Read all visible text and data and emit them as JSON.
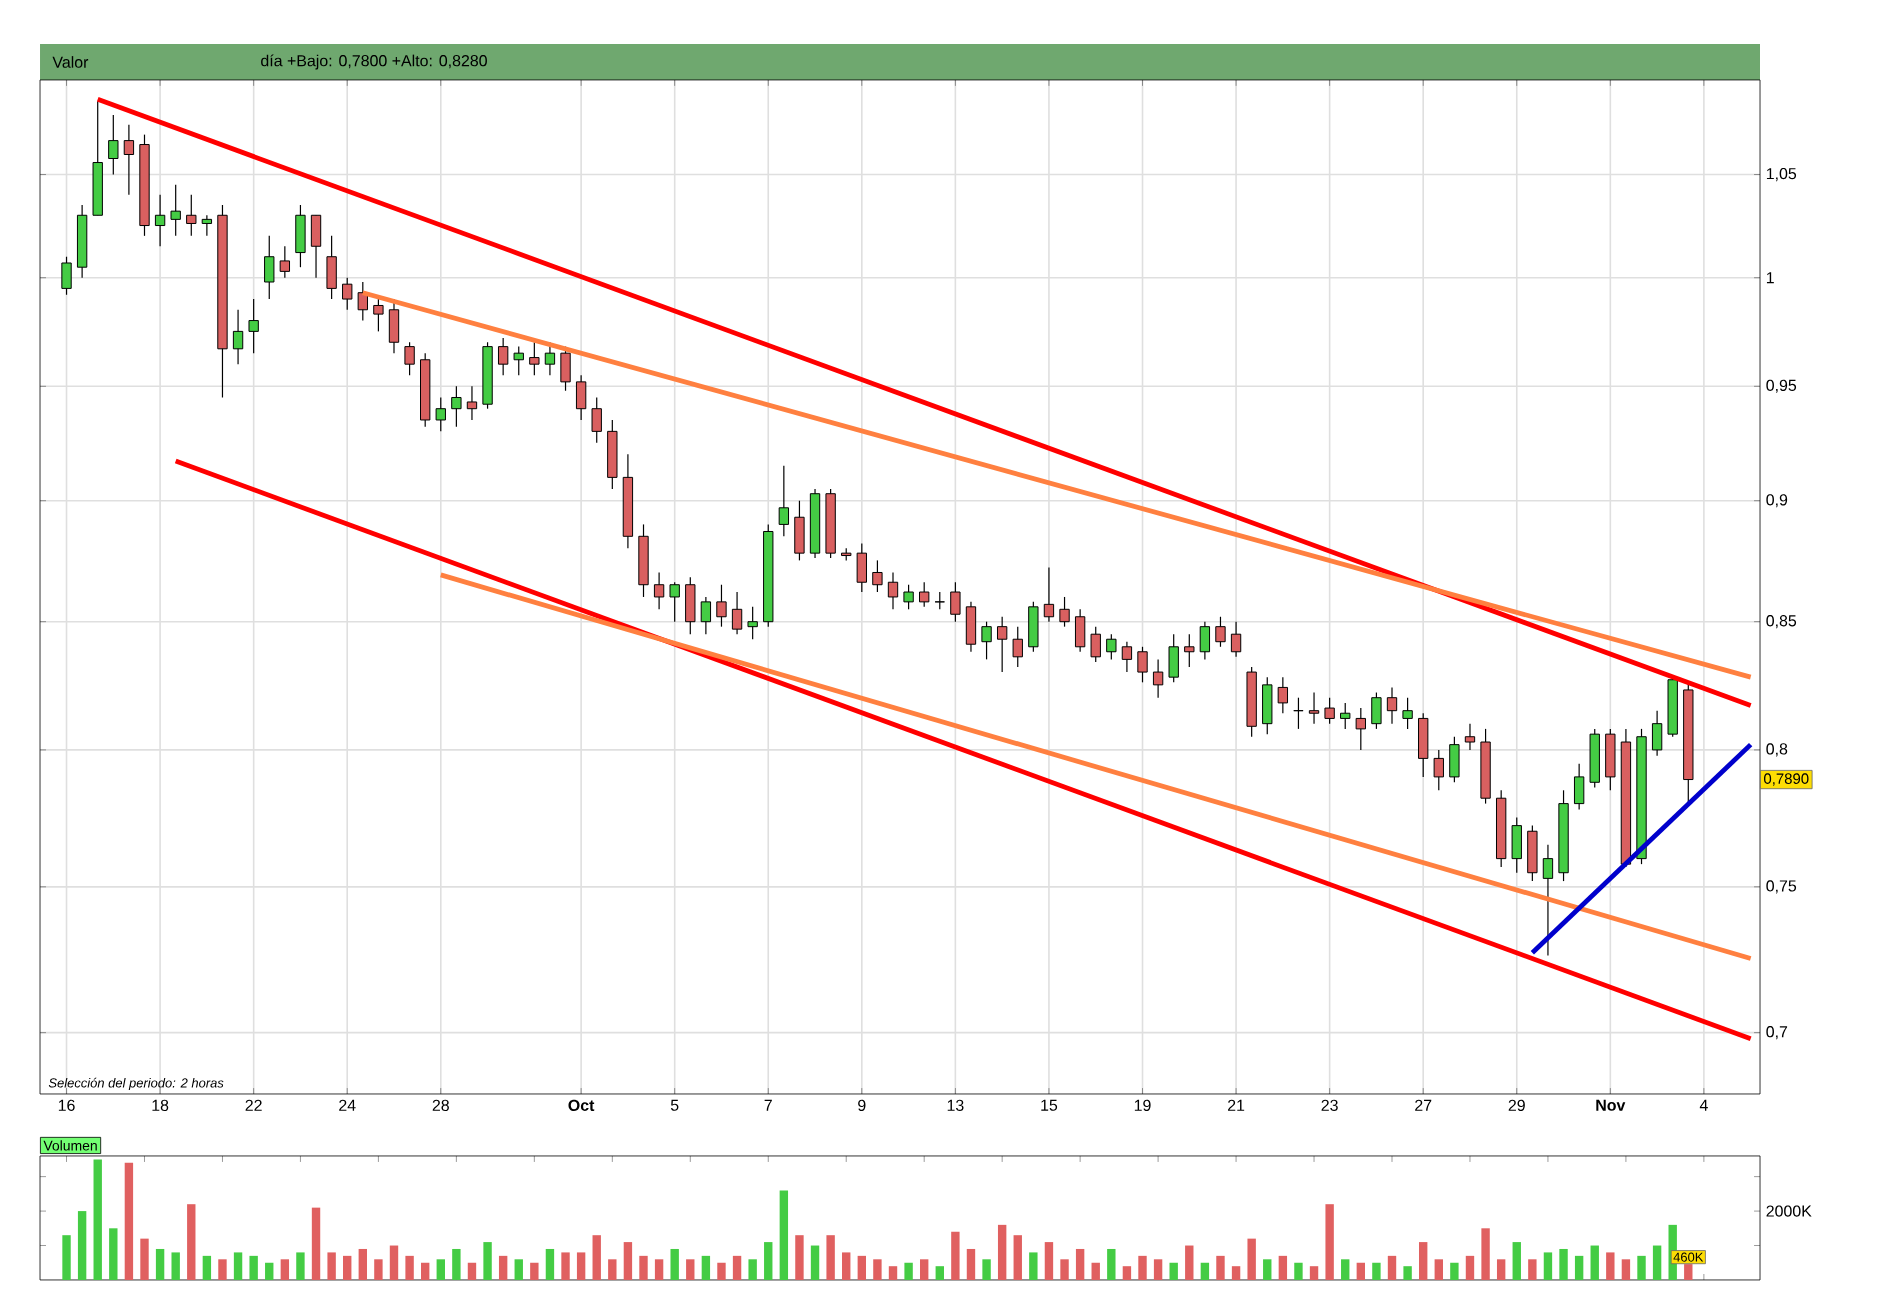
{
  "chart_data": [
    {
      "type": "candlestick",
      "log": true,
      "grid": true,
      "ylim": [
        0.68,
        1.098
      ],
      "yticks": [
        {
          "value": 0.7,
          "label": "0,7"
        },
        {
          "value": 0.75,
          "label": "0,75"
        },
        {
          "value": 0.8,
          "label": "0,8"
        },
        {
          "value": 0.85,
          "label": "0,85"
        },
        {
          "value": 0.9,
          "label": "0,9"
        },
        {
          "value": 0.95,
          "label": "0,95"
        },
        {
          "value": 1,
          "label": "1"
        },
        {
          "value": 1.05,
          "label": "1,05"
        }
      ],
      "categories": [
        "16",
        null,
        null,
        null,
        null,
        null,
        "18",
        null,
        null,
        null,
        null,
        null,
        "22",
        null,
        null,
        null,
        null,
        null,
        "24",
        null,
        null,
        null,
        null,
        null,
        "28",
        null,
        null,
        null,
        null,
        null,
        null,
        null,
        null,
        "**Oct**",
        null,
        null,
        null,
        null,
        null,
        "5",
        null,
        null,
        null,
        null,
        null,
        "7",
        null,
        null,
        null,
        null,
        null,
        "9",
        null,
        null,
        null,
        null,
        null,
        "13",
        null,
        null,
        null,
        null,
        null,
        "15",
        null,
        null,
        null,
        null,
        null,
        "19",
        null,
        null,
        null,
        null,
        null,
        "21",
        null,
        null,
        null,
        null,
        null,
        "23",
        null,
        null,
        null,
        null,
        null,
        "27",
        null,
        null,
        null,
        null,
        null,
        "29",
        null,
        null,
        null,
        null,
        null,
        "**Nov**",
        null,
        null,
        null,
        null,
        null,
        "4",
        null,
        null,
        null
      ],
      "ohlc": [
        [
          0.995,
          1.01,
          0.992,
          1.007
        ],
        [
          1.005,
          1.035,
          1.0,
          1.03
        ],
        [
          1.03,
          1.087,
          1.03,
          1.056
        ],
        [
          1.058,
          1.08,
          1.05,
          1.067
        ],
        [
          1.067,
          1.075,
          1.04,
          1.06
        ],
        [
          1.065,
          1.07,
          1.02,
          1.025
        ],
        [
          1.025,
          1.04,
          1.015,
          1.03
        ],
        [
          1.028,
          1.045,
          1.02,
          1.032
        ],
        [
          1.03,
          1.04,
          1.02,
          1.026
        ],
        [
          1.026,
          1.03,
          1.02,
          1.028
        ],
        [
          1.03,
          1.035,
          0.945,
          0.967
        ],
        [
          0.967,
          0.985,
          0.96,
          0.975
        ],
        [
          0.975,
          0.99,
          0.965,
          0.98
        ],
        [
          0.998,
          1.02,
          0.99,
          1.01
        ],
        [
          1.008,
          1.015,
          1.0,
          1.003
        ],
        [
          1.012,
          1.035,
          1.005,
          1.03
        ],
        [
          1.03,
          1.03,
          1.0,
          1.015
        ],
        [
          1.01,
          1.02,
          0.99,
          0.995
        ],
        [
          0.997,
          1.0,
          0.985,
          0.99
        ],
        [
          0.993,
          0.998,
          0.98,
          0.985
        ],
        [
          0.987,
          0.99,
          0.975,
          0.983
        ],
        [
          0.985,
          0.99,
          0.965,
          0.97
        ],
        [
          0.968,
          0.97,
          0.955,
          0.96
        ],
        [
          0.962,
          0.965,
          0.932,
          0.935
        ],
        [
          0.935,
          0.945,
          0.93,
          0.94
        ],
        [
          0.94,
          0.95,
          0.932,
          0.945
        ],
        [
          0.943,
          0.95,
          0.935,
          0.94
        ],
        [
          0.942,
          0.97,
          0.94,
          0.968
        ],
        [
          0.968,
          0.972,
          0.955,
          0.96
        ],
        [
          0.962,
          0.968,
          0.955,
          0.965
        ],
        [
          0.963,
          0.97,
          0.955,
          0.96
        ],
        [
          0.96,
          0.97,
          0.955,
          0.965
        ],
        [
          0.965,
          0.968,
          0.948,
          0.952
        ],
        [
          0.952,
          0.955,
          0.935,
          0.94
        ],
        [
          0.94,
          0.945,
          0.925,
          0.93
        ],
        [
          0.93,
          0.935,
          0.905,
          0.91
        ],
        [
          0.91,
          0.92,
          0.88,
          0.885
        ],
        [
          0.885,
          0.89,
          0.86,
          0.865
        ],
        [
          0.865,
          0.87,
          0.855,
          0.86
        ],
        [
          0.86,
          0.866,
          0.85,
          0.865
        ],
        [
          0.865,
          0.868,
          0.845,
          0.85
        ],
        [
          0.85,
          0.86,
          0.845,
          0.858
        ],
        [
          0.858,
          0.865,
          0.848,
          0.852
        ],
        [
          0.855,
          0.862,
          0.845,
          0.847
        ],
        [
          0.848,
          0.856,
          0.843,
          0.85
        ],
        [
          0.85,
          0.89,
          0.848,
          0.887
        ],
        [
          0.89,
          0.915,
          0.885,
          0.897
        ],
        [
          0.893,
          0.9,
          0.875,
          0.878
        ],
        [
          0.878,
          0.905,
          0.876,
          0.903
        ],
        [
          0.903,
          0.905,
          0.876,
          0.878
        ],
        [
          0.878,
          0.88,
          0.875,
          0.877
        ],
        [
          0.878,
          0.882,
          0.862,
          0.866
        ],
        [
          0.87,
          0.875,
          0.862,
          0.865
        ],
        [
          0.866,
          0.87,
          0.855,
          0.86
        ],
        [
          0.858,
          0.865,
          0.855,
          0.862
        ],
        [
          0.862,
          0.866,
          0.856,
          0.858
        ],
        [
          0.858,
          0.862,
          0.855,
          0.858
        ],
        [
          0.862,
          0.866,
          0.85,
          0.853
        ],
        [
          0.856,
          0.858,
          0.838,
          0.841
        ],
        [
          0.842,
          0.85,
          0.835,
          0.848
        ],
        [
          0.848,
          0.852,
          0.83,
          0.843
        ],
        [
          0.843,
          0.848,
          0.832,
          0.836
        ],
        [
          0.84,
          0.858,
          0.838,
          0.856
        ],
        [
          0.857,
          0.872,
          0.85,
          0.852
        ],
        [
          0.855,
          0.86,
          0.848,
          0.85
        ],
        [
          0.852,
          0.855,
          0.838,
          0.84
        ],
        [
          0.845,
          0.848,
          0.834,
          0.836
        ],
        [
          0.838,
          0.845,
          0.835,
          0.843
        ],
        [
          0.84,
          0.842,
          0.83,
          0.835
        ],
        [
          0.838,
          0.84,
          0.826,
          0.83
        ],
        [
          0.83,
          0.835,
          0.82,
          0.825
        ],
        [
          0.828,
          0.845,
          0.826,
          0.84
        ],
        [
          0.84,
          0.845,
          0.832,
          0.838
        ],
        [
          0.838,
          0.85,
          0.835,
          0.848
        ],
        [
          0.848,
          0.852,
          0.84,
          0.842
        ],
        [
          0.845,
          0.85,
          0.836,
          0.838
        ],
        [
          0.83,
          0.832,
          0.805,
          0.809
        ],
        [
          0.81,
          0.828,
          0.806,
          0.825
        ],
        [
          0.824,
          0.828,
          0.814,
          0.818
        ],
        [
          0.815,
          0.82,
          0.808,
          0.815
        ],
        [
          0.815,
          0.822,
          0.81,
          0.814
        ],
        [
          0.816,
          0.82,
          0.81,
          0.812
        ],
        [
          0.812,
          0.818,
          0.808,
          0.814
        ],
        [
          0.812,
          0.816,
          0.8,
          0.808
        ],
        [
          0.81,
          0.822,
          0.808,
          0.82
        ],
        [
          0.82,
          0.824,
          0.81,
          0.815
        ],
        [
          0.812,
          0.82,
          0.808,
          0.815
        ],
        [
          0.812,
          0.814,
          0.79,
          0.797
        ],
        [
          0.797,
          0.8,
          0.785,
          0.79
        ],
        [
          0.79,
          0.805,
          0.788,
          0.802
        ],
        [
          0.805,
          0.81,
          0.8,
          0.803
        ],
        [
          0.803,
          0.808,
          0.78,
          0.782
        ],
        [
          0.782,
          0.785,
          0.757,
          0.76
        ],
        [
          0.76,
          0.775,
          0.755,
          0.772
        ],
        [
          0.77,
          0.772,
          0.752,
          0.755
        ],
        [
          0.753,
          0.765,
          0.726,
          0.76
        ],
        [
          0.755,
          0.785,
          0.752,
          0.78
        ],
        [
          0.78,
          0.795,
          0.778,
          0.79
        ],
        [
          0.788,
          0.808,
          0.786,
          0.806
        ],
        [
          0.806,
          0.808,
          0.785,
          0.79
        ],
        [
          0.803,
          0.808,
          0.757,
          0.758
        ],
        [
          0.76,
          0.808,
          0.758,
          0.805
        ],
        [
          0.8,
          0.815,
          0.798,
          0.81
        ],
        [
          0.806,
          0.828,
          0.805,
          0.827
        ],
        [
          0.823,
          0.826,
          0.78,
          0.789
        ],
        null,
        null,
        null,
        null
      ],
      "series": [
        {
          "type": "line",
          "color": "#ff0000",
          "values": [
            null,
            null,
            1.088,
            null,
            null,
            null,
            null,
            null,
            null,
            null,
            null,
            null,
            null,
            null,
            null,
            null,
            null,
            null,
            null,
            null,
            null,
            null,
            null,
            null,
            null,
            null,
            null,
            null,
            null,
            null,
            null,
            null,
            null,
            null,
            null,
            null,
            null,
            null,
            null,
            null,
            null,
            null,
            null,
            null,
            null,
            null,
            null,
            null,
            null,
            null,
            null,
            null,
            null,
            null,
            null,
            null,
            null,
            null,
            null,
            null,
            null,
            null,
            null,
            null,
            null,
            null,
            null,
            null,
            null,
            null,
            null,
            null,
            null,
            null,
            null,
            null,
            null,
            null,
            null,
            null,
            null,
            null,
            null,
            null,
            null,
            null,
            null,
            null,
            null,
            null,
            null,
            null,
            null,
            null,
            null,
            null,
            null,
            null,
            null,
            null,
            null,
            null,
            null,
            null,
            null,
            null,
            null,
            null,
            0.817
          ]
        },
        {
          "type": "line",
          "color": "#ff8040",
          "values": [
            null,
            null,
            null,
            null,
            null,
            null,
            null,
            null,
            null,
            null,
            null,
            null,
            null,
            null,
            null,
            null,
            null,
            null,
            null,
            0.993,
            null,
            null,
            null,
            null,
            null,
            null,
            null,
            null,
            null,
            null,
            null,
            null,
            null,
            null,
            null,
            null,
            null,
            null,
            null,
            null,
            null,
            null,
            null,
            null,
            null,
            null,
            null,
            null,
            null,
            null,
            null,
            null,
            null,
            null,
            null,
            null,
            null,
            null,
            null,
            null,
            null,
            null,
            null,
            null,
            null,
            null,
            null,
            null,
            null,
            null,
            null,
            null,
            null,
            null,
            null,
            null,
            null,
            null,
            null,
            null,
            null,
            null,
            null,
            null,
            null,
            null,
            null,
            null,
            null,
            null,
            null,
            null,
            null,
            null,
            null,
            null,
            null,
            null,
            null,
            null,
            null,
            null,
            null,
            null,
            null,
            null,
            null,
            null,
            0.828
          ]
        },
        {
          "type": "line",
          "color": "#ff0000",
          "values": [
            null,
            null,
            null,
            null,
            null,
            null,
            null,
            0.917,
            null,
            null,
            null,
            null,
            null,
            null,
            null,
            null,
            null,
            null,
            null,
            null,
            null,
            null,
            null,
            null,
            null,
            null,
            null,
            null,
            null,
            null,
            null,
            null,
            null,
            null,
            null,
            null,
            null,
            null,
            null,
            null,
            null,
            null,
            null,
            null,
            null,
            null,
            null,
            null,
            null,
            null,
            null,
            null,
            null,
            null,
            null,
            null,
            null,
            null,
            null,
            null,
            null,
            null,
            null,
            null,
            null,
            null,
            null,
            null,
            null,
            null,
            null,
            null,
            null,
            null,
            null,
            null,
            null,
            null,
            null,
            null,
            null,
            null,
            null,
            null,
            null,
            null,
            null,
            null,
            null,
            null,
            null,
            null,
            null,
            null,
            null,
            null,
            null,
            null,
            null,
            null,
            null,
            null,
            null,
            null,
            null,
            null,
            null,
            null,
            0.698
          ]
        },
        {
          "type": "line",
          "color": "#ff8040",
          "values": [
            null,
            null,
            null,
            null,
            null,
            null,
            null,
            null,
            null,
            null,
            null,
            null,
            null,
            null,
            null,
            null,
            null,
            null,
            null,
            null,
            null,
            null,
            null,
            null,
            0.869,
            null,
            null,
            null,
            null,
            null,
            null,
            null,
            null,
            null,
            null,
            null,
            null,
            null,
            null,
            null,
            null,
            null,
            null,
            null,
            null,
            null,
            null,
            null,
            null,
            null,
            null,
            null,
            null,
            null,
            null,
            null,
            null,
            null,
            null,
            null,
            null,
            null,
            null,
            null,
            null,
            null,
            null,
            null,
            null,
            null,
            null,
            null,
            null,
            null,
            null,
            null,
            null,
            null,
            null,
            null,
            null,
            null,
            null,
            null,
            null,
            null,
            null,
            null,
            null,
            null,
            null,
            null,
            null,
            null,
            null,
            null,
            null,
            null,
            null,
            null,
            null,
            null,
            null,
            null,
            null,
            null,
            null,
            null,
            0.725
          ]
        },
        {
          "type": "line",
          "color": "#0000cc",
          "values": [
            null,
            null,
            null,
            null,
            null,
            null,
            null,
            null,
            null,
            null,
            null,
            null,
            null,
            null,
            null,
            null,
            null,
            null,
            null,
            null,
            null,
            null,
            null,
            null,
            null,
            null,
            null,
            null,
            null,
            null,
            null,
            null,
            null,
            null,
            null,
            null,
            null,
            null,
            null,
            null,
            null,
            null,
            null,
            null,
            null,
            null,
            null,
            null,
            null,
            null,
            null,
            null,
            null,
            null,
            null,
            null,
            null,
            null,
            null,
            null,
            null,
            null,
            null,
            null,
            null,
            null,
            null,
            null,
            null,
            null,
            null,
            null,
            null,
            null,
            null,
            null,
            null,
            null,
            null,
            null,
            null,
            null,
            null,
            null,
            null,
            null,
            null,
            null,
            null,
            null,
            null,
            null,
            null,
            null,
            0.727,
            null,
            null,
            null,
            null,
            null,
            null,
            null,
            null,
            null,
            null,
            null,
            null,
            null,
            0.802
          ]
        }
      ],
      "annotations": [
        "Valor",
        "día +Bajo: 0,7800 +Alto: 0,8280",
        "Selección del periodo: 2 horas",
        {
          "text": "0,7890",
          "y": 0.789
        }
      ]
    },
    {
      "type": "bar",
      "title": "Volumen",
      "tick_labels": "y",
      "ylim": [
        0,
        3600
      ],
      "yticks": [
        {
          "value": 1000,
          "label": null
        },
        {
          "value": 2000,
          "label": "2000K"
        },
        {
          "value": 3000,
          "label": null
        }
      ],
      "categories": [
        null,
        null,
        null,
        null,
        null,
        null,
        null,
        null,
        null,
        null,
        null,
        null,
        null,
        null,
        null,
        null,
        null,
        null,
        null,
        null,
        null,
        null,
        null,
        null,
        null,
        null,
        null,
        null,
        null,
        null,
        null,
        null,
        null,
        null,
        null,
        null,
        null,
        null,
        null,
        null,
        null,
        null,
        null,
        null,
        null,
        null,
        null,
        null,
        null,
        null,
        null,
        null,
        null,
        null,
        null,
        null,
        null,
        null,
        null,
        null,
        null,
        null,
        null,
        null,
        null,
        null,
        null,
        null,
        null,
        null,
        null,
        null,
        null,
        null,
        null,
        null,
        null,
        null,
        null,
        null,
        null,
        null,
        null,
        null,
        null,
        null,
        null,
        null,
        null,
        null,
        null,
        null,
        null,
        null,
        null,
        null,
        null,
        null,
        null,
        null,
        null,
        null,
        null,
        null,
        null,
        null,
        null,
        null,
        null
      ],
      "values": [
        1300,
        2000,
        3500,
        1500,
        3400,
        1200,
        900,
        800,
        2200,
        700,
        600,
        800,
        700,
        500,
        600,
        800,
        2100,
        800,
        700,
        900,
        600,
        1000,
        700,
        500,
        600,
        900,
        500,
        1100,
        700,
        600,
        500,
        900,
        800,
        800,
        1300,
        600,
        1100,
        700,
        600,
        900,
        600,
        700,
        500,
        700,
        600,
        1100,
        2600,
        1300,
        1000,
        1300,
        800,
        700,
        600,
        400,
        500,
        600,
        400,
        1400,
        900,
        600,
        1600,
        1300,
        800,
        1100,
        600,
        900,
        500,
        900,
        400,
        700,
        600,
        500,
        1000,
        500,
        700,
        400,
        1200,
        600,
        700,
        500,
        400,
        2200,
        600,
        500,
        500,
        700,
        400,
        1100,
        600,
        500,
        700,
        1500,
        600,
        1100,
        600,
        800,
        900,
        700,
        1000,
        800,
        600,
        700,
        1000,
        1600,
        460,
        null,
        null,
        null,
        null
      ],
      "colors": [
        "#44cc44",
        "#44cc44",
        "#44cc44",
        "#44cc44",
        "#e06060",
        "#e06060",
        "#44cc44",
        "#44cc44",
        "#e06060",
        "#44cc44",
        "#e06060",
        "#44cc44",
        "#44cc44",
        "#44cc44",
        "#e06060",
        "#44cc44",
        "#e06060",
        "#e06060",
        "#e06060",
        "#e06060",
        "#e06060",
        "#e06060",
        "#e06060",
        "#e06060",
        "#44cc44",
        "#44cc44",
        "#e06060",
        "#44cc44",
        "#e06060",
        "#44cc44",
        "#e06060",
        "#44cc44",
        "#e06060",
        "#e06060",
        "#e06060",
        "#e06060",
        "#e06060",
        "#e06060",
        "#e06060",
        "#44cc44",
        "#e06060",
        "#44cc44",
        "#e06060",
        "#e06060",
        "#44cc44",
        "#44cc44",
        "#44cc44",
        "#e06060",
        "#44cc44",
        "#e06060",
        "#e06060",
        "#e06060",
        "#e06060",
        "#e06060",
        "#44cc44",
        "#e06060",
        "#44cc44",
        "#e06060",
        "#e06060",
        "#44cc44",
        "#e06060",
        "#e06060",
        "#44cc44",
        "#e06060",
        "#e06060",
        "#e06060",
        "#e06060",
        "#44cc44",
        "#e06060",
        "#e06060",
        "#e06060",
        "#44cc44",
        "#e06060",
        "#44cc44",
        "#e06060",
        "#e06060",
        "#e06060",
        "#44cc44",
        "#e06060",
        "#44cc44",
        "#e06060",
        "#e06060",
        "#44cc44",
        "#e06060",
        "#44cc44",
        "#e06060",
        "#44cc44",
        "#e06060",
        "#e06060",
        "#44cc44",
        "#e06060",
        "#e06060",
        "#e06060",
        "#44cc44",
        "#e06060",
        "#44cc44",
        "#44cc44",
        "#44cc44",
        "#44cc44",
        "#e06060",
        "#e06060",
        "#44cc44",
        "#44cc44",
        "#44cc44",
        "#e06060",
        null,
        null,
        null,
        null
      ],
      "value_labels": [
        null,
        null,
        null,
        null,
        null,
        null,
        null,
        null,
        null,
        null,
        null,
        null,
        null,
        null,
        null,
        null,
        null,
        null,
        null,
        null,
        null,
        null,
        null,
        null,
        null,
        null,
        null,
        null,
        null,
        null,
        null,
        null,
        null,
        null,
        null,
        null,
        null,
        null,
        null,
        null,
        null,
        null,
        null,
        null,
        null,
        null,
        null,
        null,
        null,
        null,
        null,
        null,
        null,
        null,
        null,
        null,
        null,
        null,
        null,
        null,
        null,
        null,
        null,
        null,
        null,
        null,
        null,
        null,
        null,
        null,
        null,
        null,
        null,
        null,
        null,
        null,
        null,
        null,
        null,
        null,
        null,
        null,
        null,
        null,
        null,
        null,
        null,
        null,
        null,
        null,
        null,
        null,
        null,
        null,
        null,
        null,
        null,
        null,
        null,
        null,
        null,
        null,
        null,
        null,
        "460K",
        null,
        null,
        null,
        null
      ]
    }
  ]
}
